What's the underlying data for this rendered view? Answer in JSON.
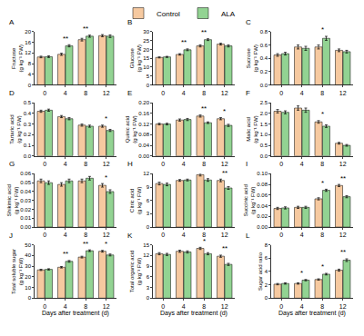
{
  "chart_data": [
    {
      "type": "bar",
      "title": "A",
      "y_label": "Fructose (g kg⁻¹ FW)",
      "categories": [
        "0",
        "4",
        "8",
        "12"
      ],
      "ylim": [
        0,
        20
      ],
      "yticks": [
        0,
        4,
        8,
        12,
        16,
        20
      ],
      "legend": "top",
      "series": [
        {
          "name": "Control",
          "color": "#f6c9a0",
          "values": [
            10.5,
            11.5,
            17.0,
            18.5
          ],
          "errors": [
            0.3,
            0.4,
            0.5,
            0.4
          ]
        },
        {
          "name": "ALA",
          "color": "#92d392",
          "values": [
            10.6,
            14.7,
            18.3,
            18.3
          ],
          "errors": [
            0.3,
            0.4,
            0.4,
            0.5
          ]
        }
      ],
      "annotations": [
        {
          "category": "4",
          "text": "**"
        },
        {
          "category": "8",
          "text": "**"
        }
      ]
    },
    {
      "type": "bar",
      "title": "B",
      "y_label": "Glucose (g kg⁻¹ FW)",
      "categories": [
        "0",
        "4",
        "8",
        "12"
      ],
      "ylim": [
        0,
        30
      ],
      "yticks": [
        0,
        5,
        10,
        15,
        20,
        25,
        30
      ],
      "series": [
        {
          "name": "Control",
          "color": "#f6c9a0",
          "values": [
            15.5,
            17.2,
            22.0,
            23.0
          ],
          "errors": [
            0.3,
            0.4,
            0.6,
            0.5
          ]
        },
        {
          "name": "ALA",
          "color": "#92d392",
          "values": [
            15.8,
            19.8,
            25.5,
            22.0
          ],
          "errors": [
            0.3,
            0.5,
            0.5,
            0.6
          ]
        }
      ],
      "annotations": [
        {
          "category": "4",
          "text": "**"
        },
        {
          "category": "8",
          "text": "**"
        }
      ]
    },
    {
      "type": "bar",
      "title": "C",
      "y_label": "Sucrose (g kg⁻¹ FW)",
      "categories": [
        "0",
        "4",
        "8",
        "12"
      ],
      "ylim": [
        0,
        0.8
      ],
      "yticks": [
        {
          "value": 0,
          "label": "0.0"
        },
        0.2,
        0.4,
        0.6,
        0.8
      ],
      "series": [
        {
          "name": "Control",
          "color": "#f6c9a0",
          "values": [
            0.45,
            0.57,
            0.57,
            0.52
          ],
          "errors": [
            0.02,
            0.03,
            0.03,
            0.02
          ]
        },
        {
          "name": "ALA",
          "color": "#92d392",
          "values": [
            0.47,
            0.55,
            0.7,
            0.5
          ],
          "errors": [
            0.02,
            0.03,
            0.03,
            0.02
          ]
        }
      ],
      "annotations": [
        {
          "category": "8",
          "text": "*"
        }
      ]
    },
    {
      "type": "bar",
      "title": "D",
      "y_label": "Tartaric acid (g kg⁻¹ FW)",
      "categories": [
        "0",
        "4",
        "8",
        "12"
      ],
      "ylim": [
        0,
        0.5
      ],
      "yticks": [
        {
          "value": 0,
          "label": "0.0"
        },
        0.1,
        0.2,
        0.3,
        0.4,
        0.5
      ],
      "series": [
        {
          "name": "Control",
          "color": "#f6c9a0",
          "values": [
            0.42,
            0.37,
            0.29,
            0.28
          ],
          "errors": [
            0.01,
            0.01,
            0.01,
            0.01
          ]
        },
        {
          "name": "ALA",
          "color": "#92d392",
          "values": [
            0.43,
            0.35,
            0.28,
            0.24
          ],
          "errors": [
            0.01,
            0.01,
            0.01,
            0.01
          ]
        }
      ],
      "annotations": [
        {
          "category": "12",
          "text": "*"
        }
      ]
    },
    {
      "type": "bar",
      "title": "E",
      "y_label": "Quinic acid (g kg⁻¹ FW)",
      "categories": [
        "0",
        "4",
        "8",
        "12"
      ],
      "ylim": [
        0,
        0.2
      ],
      "yticks": [
        {
          "value": 0,
          "label": "0.00"
        },
        0.04,
        0.08,
        0.12,
        0.16,
        {
          "value": 0.2,
          "label": "0.20"
        }
      ],
      "series": [
        {
          "name": "Control",
          "color": "#f6c9a0",
          "values": [
            0.12,
            0.135,
            0.15,
            0.14
          ],
          "errors": [
            0.003,
            0.004,
            0.004,
            0.004
          ]
        },
        {
          "name": "ALA",
          "color": "#92d392",
          "values": [
            0.12,
            0.137,
            0.125,
            0.115
          ],
          "errors": [
            0.003,
            0.004,
            0.003,
            0.004
          ]
        }
      ],
      "annotations": [
        {
          "category": "8",
          "text": "**"
        },
        {
          "category": "12",
          "text": "*"
        }
      ]
    },
    {
      "type": "bar",
      "title": "F",
      "y_label": "Malic acid (g kg⁻¹ FW)",
      "categories": [
        "0",
        "4",
        "8",
        "12"
      ],
      "ylim": [
        0,
        2.5
      ],
      "yticks": [
        {
          "value": 0,
          "label": "0.0"
        },
        0.5,
        {
          "value": 1,
          "label": "1.0"
        },
        1.5,
        {
          "value": 2,
          "label": "2.0"
        },
        2.5
      ],
      "series": [
        {
          "name": "Control",
          "color": "#f6c9a0",
          "values": [
            2.1,
            2.25,
            1.6,
            0.6
          ],
          "errors": [
            0.08,
            0.1,
            0.06,
            0.04
          ]
        },
        {
          "name": "ALA",
          "color": "#92d392",
          "values": [
            2.05,
            2.15,
            1.4,
            0.5
          ],
          "errors": [
            0.07,
            0.1,
            0.06,
            0.04
          ]
        }
      ],
      "annotations": [
        {
          "category": "8",
          "text": "*"
        }
      ]
    },
    {
      "type": "bar",
      "title": "G",
      "y_label": "Shikimic acid (g kg⁻¹ FW)",
      "categories": [
        "0",
        "4",
        "8",
        "12"
      ],
      "ylim": [
        0,
        0.06
      ],
      "yticks": [
        {
          "value": 0,
          "label": "0.00"
        },
        0.01,
        0.02,
        0.03,
        0.04,
        0.05,
        0.06
      ],
      "series": [
        {
          "name": "Control",
          "color": "#f6c9a0",
          "values": [
            0.052,
            0.048,
            0.052,
            0.047
          ],
          "errors": [
            0.002,
            0.002,
            0.002,
            0.002
          ]
        },
        {
          "name": "ALA",
          "color": "#92d392",
          "values": [
            0.05,
            0.052,
            0.055,
            0.04
          ],
          "errors": [
            0.002,
            0.002,
            0.002,
            0.002
          ]
        }
      ],
      "annotations": [
        {
          "category": "12",
          "text": "*"
        }
      ]
    },
    {
      "type": "bar",
      "title": "H",
      "y_label": "Citric acid (g kg⁻¹ FW)",
      "categories": [
        "0",
        "4",
        "8",
        "12"
      ],
      "ylim": [
        0,
        12
      ],
      "yticks": [
        0,
        3,
        6,
        9,
        12
      ],
      "series": [
        {
          "name": "Control",
          "color": "#f6c9a0",
          "values": [
            9.8,
            10.5,
            11.8,
            10.5
          ],
          "errors": [
            0.3,
            0.2,
            0.3,
            0.3
          ]
        },
        {
          "name": "ALA",
          "color": "#92d392",
          "values": [
            9.6,
            10.6,
            10.6,
            8.8
          ],
          "errors": [
            0.3,
            0.2,
            0.3,
            0.3
          ]
        }
      ],
      "annotations": [
        {
          "category": "8",
          "text": "*"
        },
        {
          "category": "12",
          "text": "**"
        }
      ]
    },
    {
      "type": "bar",
      "title": "I",
      "y_label": "Succinic acid (g kg⁻¹ FW)",
      "categories": [
        "0",
        "4",
        "8",
        "12"
      ],
      "ylim": [
        0,
        0.1
      ],
      "yticks": [
        {
          "value": 0,
          "label": "0.00"
        },
        0.02,
        0.04,
        0.06,
        0.08,
        {
          "value": 0.1,
          "label": "0.10"
        }
      ],
      "series": [
        {
          "name": "Control",
          "color": "#f6c9a0",
          "values": [
            0.035,
            0.037,
            0.053,
            0.078
          ],
          "errors": [
            0.002,
            0.002,
            0.002,
            0.002
          ]
        },
        {
          "name": "ALA",
          "color": "#92d392",
          "values": [
            0.036,
            0.037,
            0.069,
            0.057
          ],
          "errors": [
            0.002,
            0.002,
            0.002,
            0.002
          ]
        }
      ],
      "annotations": [
        {
          "category": "8",
          "text": "*"
        },
        {
          "category": "12",
          "text": "**"
        }
      ]
    },
    {
      "type": "bar",
      "title": "J",
      "y_label": "Total soluble sugar (g kg⁻¹ FW)",
      "x_label": "Days after treatment (d)",
      "categories": [
        "0",
        "4",
        "8",
        "12"
      ],
      "ylim": [
        0,
        50
      ],
      "yticks": [
        0,
        10,
        20,
        30,
        40,
        50
      ],
      "series": [
        {
          "name": "Control",
          "color": "#f6c9a0",
          "values": [
            26.5,
            29.0,
            38.5,
            44.0
          ],
          "errors": [
            0.6,
            0.7,
            0.8,
            0.8
          ]
        },
        {
          "name": "ALA",
          "color": "#92d392",
          "values": [
            27.0,
            34.5,
            44.5,
            40.5
          ],
          "errors": [
            0.6,
            0.8,
            0.8,
            0.9
          ]
        }
      ],
      "annotations": [
        {
          "category": "4",
          "text": "**"
        },
        {
          "category": "8",
          "text": "**"
        },
        {
          "category": "12",
          "text": "*"
        }
      ]
    },
    {
      "type": "bar",
      "title": "K",
      "y_label": "Total organic acid (g kg⁻¹ FW)",
      "x_label": "Days after treatment (d)",
      "categories": [
        "0",
        "4",
        "8",
        "12"
      ],
      "ylim": [
        0,
        15
      ],
      "yticks": [
        0,
        3,
        6,
        9,
        12,
        15
      ],
      "series": [
        {
          "name": "Control",
          "color": "#f6c9a0",
          "values": [
            12.5,
            13.2,
            14.0,
            11.8
          ],
          "errors": [
            0.3,
            0.3,
            0.3,
            0.3
          ]
        },
        {
          "name": "ALA",
          "color": "#92d392",
          "values": [
            12.3,
            13.0,
            12.5,
            9.5
          ],
          "errors": [
            0.3,
            0.3,
            0.3,
            0.3
          ]
        }
      ],
      "annotations": [
        {
          "category": "8",
          "text": "*"
        },
        {
          "category": "12",
          "text": "**"
        }
      ]
    },
    {
      "type": "bar",
      "title": "L",
      "y_label": "Sugar acid ratio",
      "x_label": "Days after treatment (d)",
      "categories": [
        "0",
        "4",
        "8",
        "12"
      ],
      "ylim": [
        0,
        8
      ],
      "yticks": [
        0,
        2,
        4,
        6,
        8
      ],
      "series": [
        {
          "name": "Control",
          "color": "#f6c9a0",
          "values": [
            2.1,
            2.2,
            2.8,
            4.2
          ],
          "errors": [
            0.1,
            0.1,
            0.1,
            0.15
          ]
        },
        {
          "name": "ALA",
          "color": "#92d392",
          "values": [
            2.2,
            2.7,
            3.6,
            5.7
          ],
          "errors": [
            0.1,
            0.1,
            0.12,
            0.2
          ]
        }
      ],
      "annotations": [
        {
          "category": "4",
          "text": "*"
        },
        {
          "category": "8",
          "text": "*"
        },
        {
          "category": "12",
          "text": "**"
        }
      ]
    }
  ]
}
